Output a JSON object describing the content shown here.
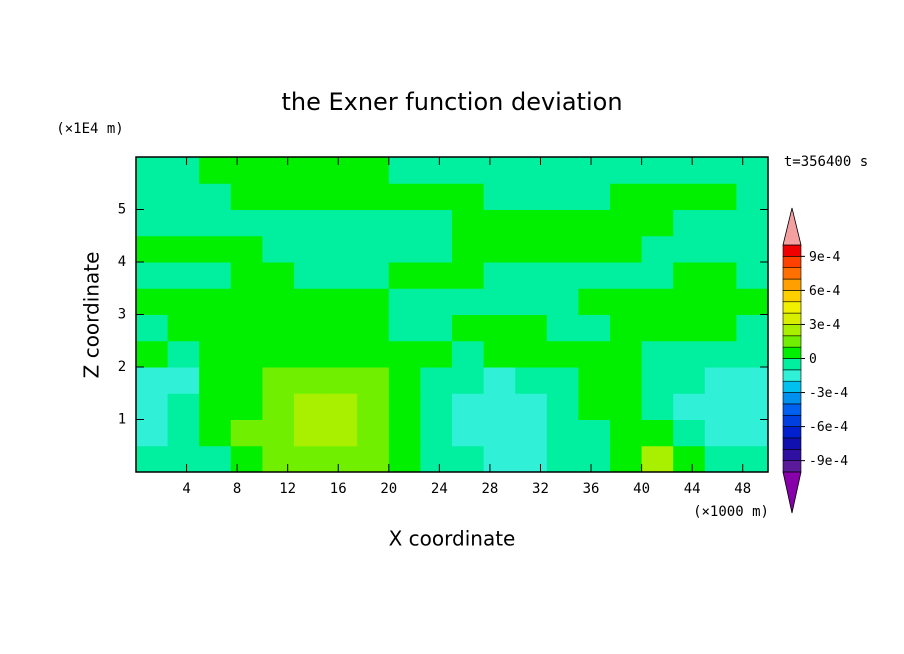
{
  "chart_data": {
    "type": "contour",
    "title": "the Exner function deviation",
    "xlabel": "X coordinate",
    "ylabel": "Z coordinate",
    "x_unit": "(×1000 m)",
    "y_unit": "(×1E4 m)",
    "time_label": "t=356400 s",
    "xlim": [
      0,
      50
    ],
    "ylim": [
      0,
      6
    ],
    "xticks": [
      4,
      8,
      12,
      16,
      20,
      24,
      28,
      32,
      36,
      40,
      44,
      48
    ],
    "yticks": [
      1,
      2,
      3,
      4,
      5
    ],
    "x": [
      1.25,
      3.75,
      6.25,
      8.75,
      11.25,
      13.75,
      16.25,
      18.75,
      21.25,
      23.75,
      26.25,
      28.75,
      31.25,
      33.75,
      36.25,
      38.75,
      41.25,
      43.75,
      46.25,
      48.75
    ],
    "y": [
      0.25,
      0.75,
      1.25,
      1.75,
      2.25,
      2.75,
      3.25,
      3.75,
      4.25,
      4.75,
      5.25,
      5.75
    ],
    "z": [
      [
        -5e-05,
        -5e-05,
        -5e-05,
        5e-05,
        0.00015,
        0.00015,
        0.00015,
        0.00015,
        5e-05,
        -5e-05,
        -5e-05,
        -0.00015,
        -0.00015,
        -5e-05,
        -5e-05,
        5e-05,
        0.00025,
        5e-05,
        -5e-05,
        -5e-05
      ],
      [
        -0.00015,
        -5e-05,
        5e-05,
        0.00015,
        0.00015,
        0.00025,
        0.00025,
        0.00015,
        5e-05,
        -5e-05,
        -0.00015,
        -0.00015,
        -0.00015,
        -5e-05,
        -5e-05,
        5e-05,
        5e-05,
        -5e-05,
        -0.00015,
        -0.00015
      ],
      [
        -0.00015,
        -5e-05,
        5e-05,
        5e-05,
        0.00015,
        0.00025,
        0.00025,
        0.00015,
        5e-05,
        -5e-05,
        -0.00015,
        -0.00015,
        -0.00015,
        -5e-05,
        5e-05,
        5e-05,
        -5e-05,
        -0.00015,
        -0.00015,
        -0.00015
      ],
      [
        -0.00015,
        -0.00015,
        5e-05,
        5e-05,
        0.00015,
        0.00015,
        0.00015,
        0.00015,
        5e-05,
        -5e-05,
        -5e-05,
        -0.00015,
        -5e-05,
        -5e-05,
        5e-05,
        5e-05,
        -5e-05,
        -5e-05,
        -0.00015,
        -0.00015
      ],
      [
        5e-05,
        -5e-05,
        5e-05,
        5e-05,
        5e-05,
        5e-05,
        5e-05,
        5e-05,
        5e-05,
        5e-05,
        -5e-05,
        5e-05,
        5e-05,
        5e-05,
        5e-05,
        5e-05,
        -5e-05,
        -5e-05,
        -5e-05,
        -5e-05
      ],
      [
        -5e-05,
        5e-05,
        5e-05,
        5e-05,
        5e-05,
        5e-05,
        5e-05,
        5e-05,
        -5e-05,
        -5e-05,
        5e-05,
        5e-05,
        5e-05,
        -5e-05,
        -5e-05,
        5e-05,
        5e-05,
        5e-05,
        5e-05,
        -5e-05
      ],
      [
        5e-05,
        5e-05,
        5e-05,
        5e-05,
        5e-05,
        5e-05,
        5e-05,
        5e-05,
        -5e-05,
        -5e-05,
        -5e-05,
        -5e-05,
        -5e-05,
        -5e-05,
        5e-05,
        5e-05,
        5e-05,
        5e-05,
        5e-05,
        5e-05
      ],
      [
        -5e-05,
        -5e-05,
        -5e-05,
        5e-05,
        5e-05,
        -5e-05,
        -5e-05,
        -5e-05,
        5e-05,
        5e-05,
        5e-05,
        -5e-05,
        -5e-05,
        -5e-05,
        -5e-05,
        -5e-05,
        -5e-05,
        5e-05,
        5e-05,
        -5e-05
      ],
      [
        5e-05,
        5e-05,
        5e-05,
        5e-05,
        -5e-05,
        -5e-05,
        -5e-05,
        -5e-05,
        -5e-05,
        -5e-05,
        5e-05,
        5e-05,
        5e-05,
        5e-05,
        5e-05,
        5e-05,
        -5e-05,
        -5e-05,
        -5e-05,
        -5e-05
      ],
      [
        -5e-05,
        -5e-05,
        -5e-05,
        -5e-05,
        -5e-05,
        -5e-05,
        -5e-05,
        -5e-05,
        -5e-05,
        -5e-05,
        5e-05,
        5e-05,
        5e-05,
        5e-05,
        5e-05,
        5e-05,
        5e-05,
        -5e-05,
        -5e-05,
        -5e-05
      ],
      [
        -5e-05,
        -5e-05,
        -5e-05,
        5e-05,
        5e-05,
        5e-05,
        5e-05,
        5e-05,
        5e-05,
        5e-05,
        5e-05,
        -5e-05,
        -5e-05,
        -5e-05,
        -5e-05,
        5e-05,
        5e-05,
        5e-05,
        5e-05,
        -5e-05
      ],
      [
        -5e-05,
        -5e-05,
        5e-05,
        5e-05,
        5e-05,
        5e-05,
        5e-05,
        5e-05,
        -5e-05,
        -5e-05,
        -5e-05,
        -5e-05,
        -5e-05,
        -5e-05,
        -5e-05,
        -5e-05,
        -5e-05,
        -5e-05,
        -5e-05,
        -5e-05
      ]
    ],
    "levels": [
      -0.001,
      -0.0009,
      -0.0008,
      -0.0007,
      -0.0006,
      -0.0005,
      -0.0004,
      -0.0003,
      -0.0002,
      -0.0001,
      0,
      0.0001,
      0.0002,
      0.0003,
      0.0004,
      0.0005,
      0.0006,
      0.0007,
      0.0008,
      0.0009,
      0.001
    ],
    "colors": [
      "#5a1a9a",
      "#3010a0",
      "#1010b0",
      "#0020d0",
      "#0040e0",
      "#0060f0",
      "#0090f0",
      "#00c0f0",
      "#30f0d8",
      "#00f0a0",
      "#00f000",
      "#70f000",
      "#a8f000",
      "#d8f000",
      "#f0f000",
      "#ffd000",
      "#ffa000",
      "#ff7000",
      "#ff4000",
      "#f00000"
    ],
    "extend_colors": [
      "#8800aa",
      "#f4a0a0"
    ],
    "cbar_ticks": [
      {
        "value": -0.0009,
        "label": "-9e-4"
      },
      {
        "value": -0.0006,
        "label": "-6e-4"
      },
      {
        "value": -0.0003,
        "label": "-3e-4"
      },
      {
        "value": 0,
        "label": "0"
      },
      {
        "value": 0.0003,
        "label": "3e-4"
      },
      {
        "value": 0.0006,
        "label": "6e-4"
      },
      {
        "value": 0.0009,
        "label": "9e-4"
      }
    ]
  }
}
